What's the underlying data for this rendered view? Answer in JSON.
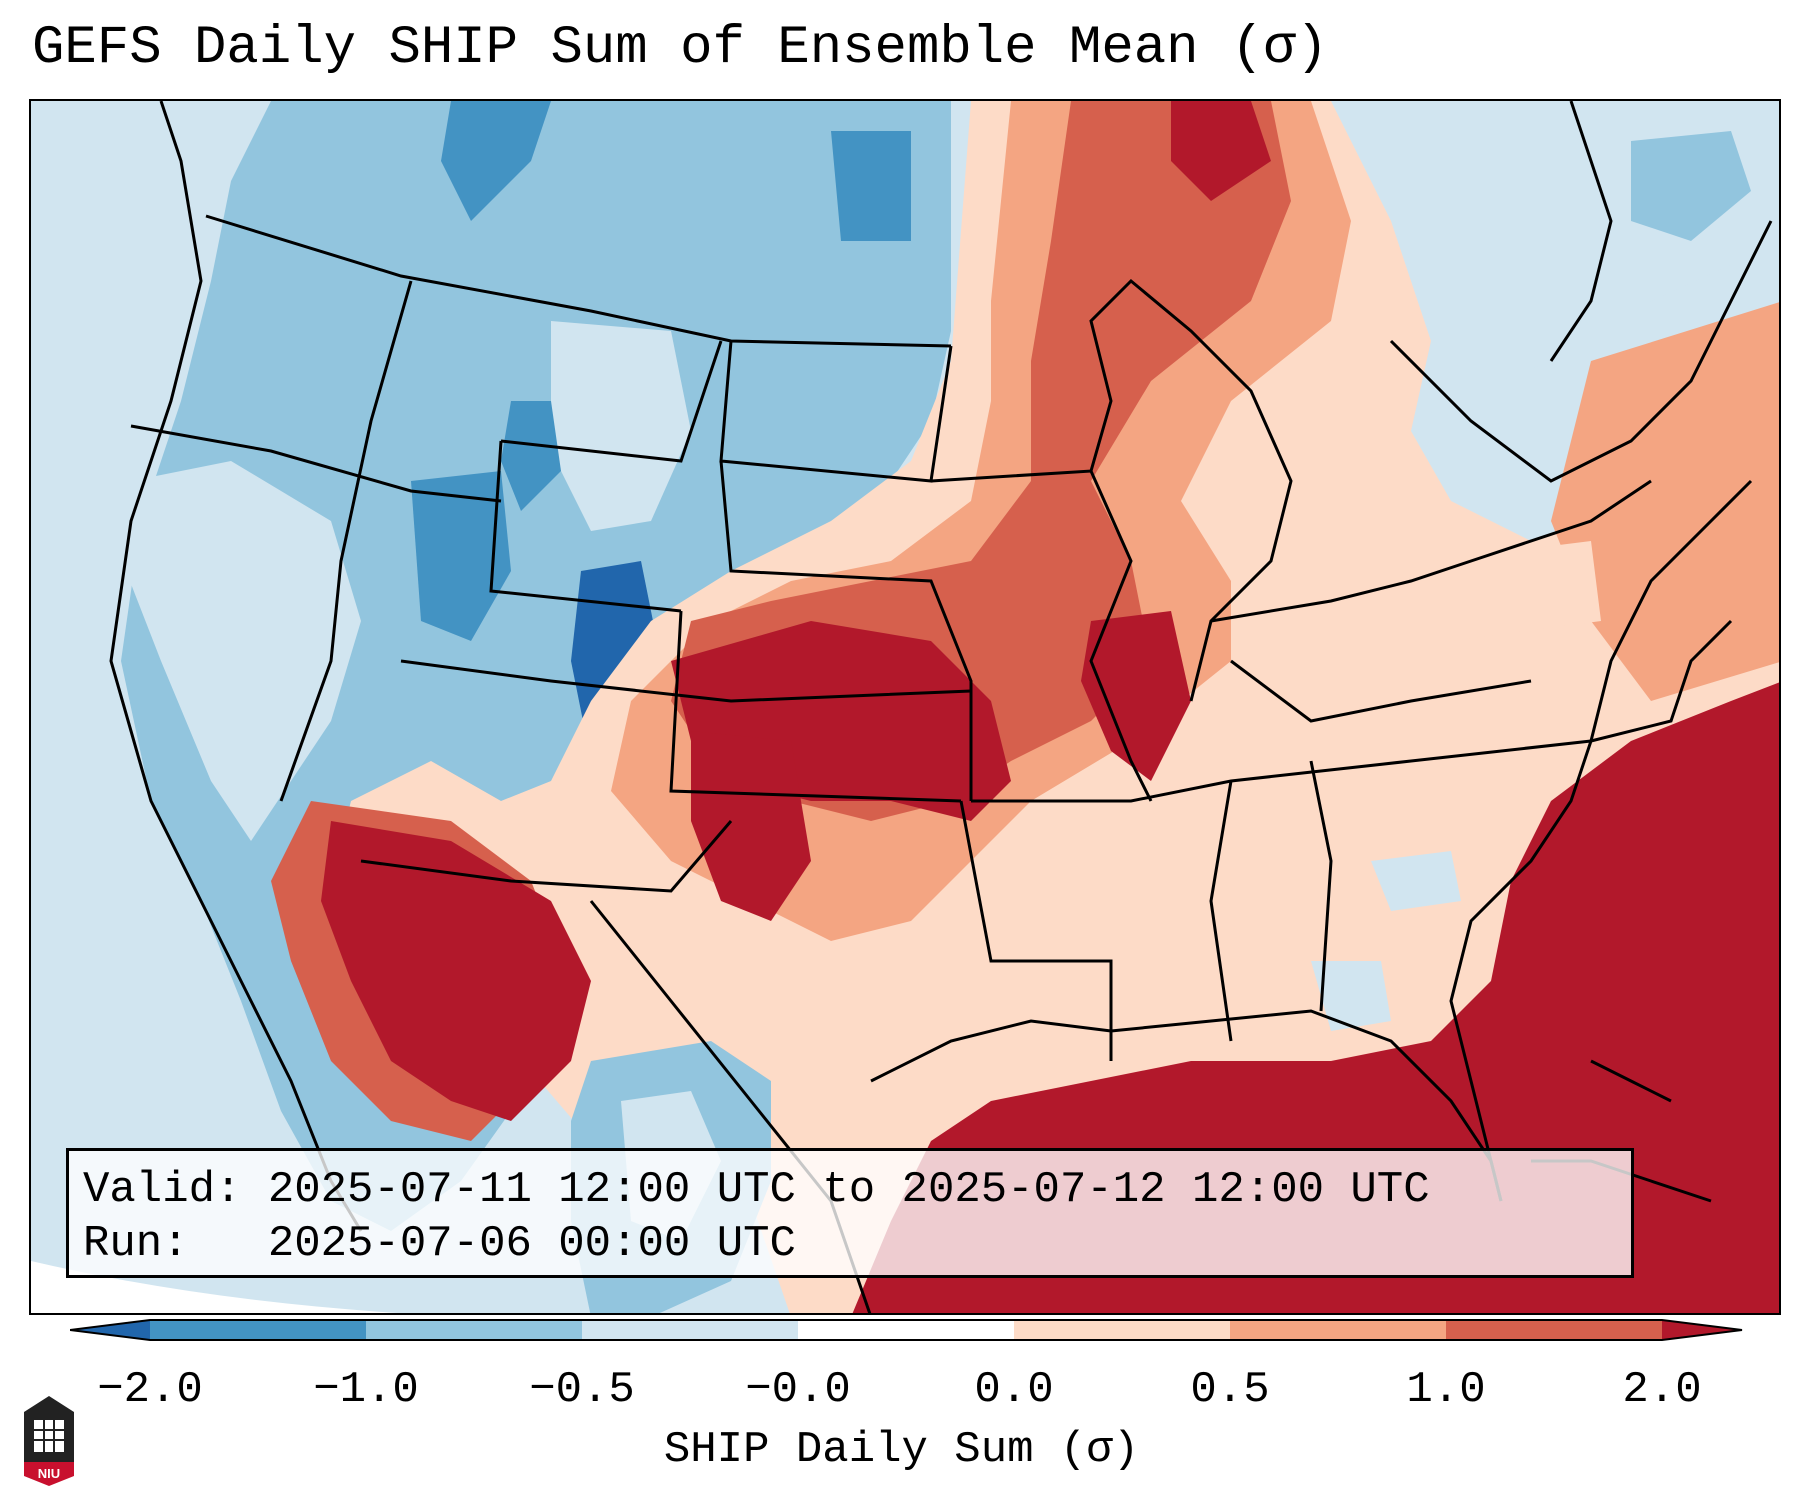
{
  "title": "GEFS Daily SHIP Sum of Ensemble Mean (σ)",
  "info": {
    "valid_line": "Valid: 2025-07-11 12:00 UTC to 2025-07-12 12:00 UTC",
    "run_line": "Run:   2025-07-06 00:00 UTC"
  },
  "colorbar": {
    "label": "SHIP Daily Sum (σ)",
    "ticks": [
      "−2.0",
      "−1.0",
      "−0.5",
      "−0.0",
      "0.0",
      "0.5",
      "1.0",
      "2.0"
    ],
    "colors": [
      "#2166ac",
      "#4393c3",
      "#92c5de",
      "#d1e5f0",
      "#ffffff",
      "#fddbc7",
      "#f4a582",
      "#d6604d",
      "#b2182b"
    ]
  },
  "logo": {
    "text": "NIU"
  }
}
